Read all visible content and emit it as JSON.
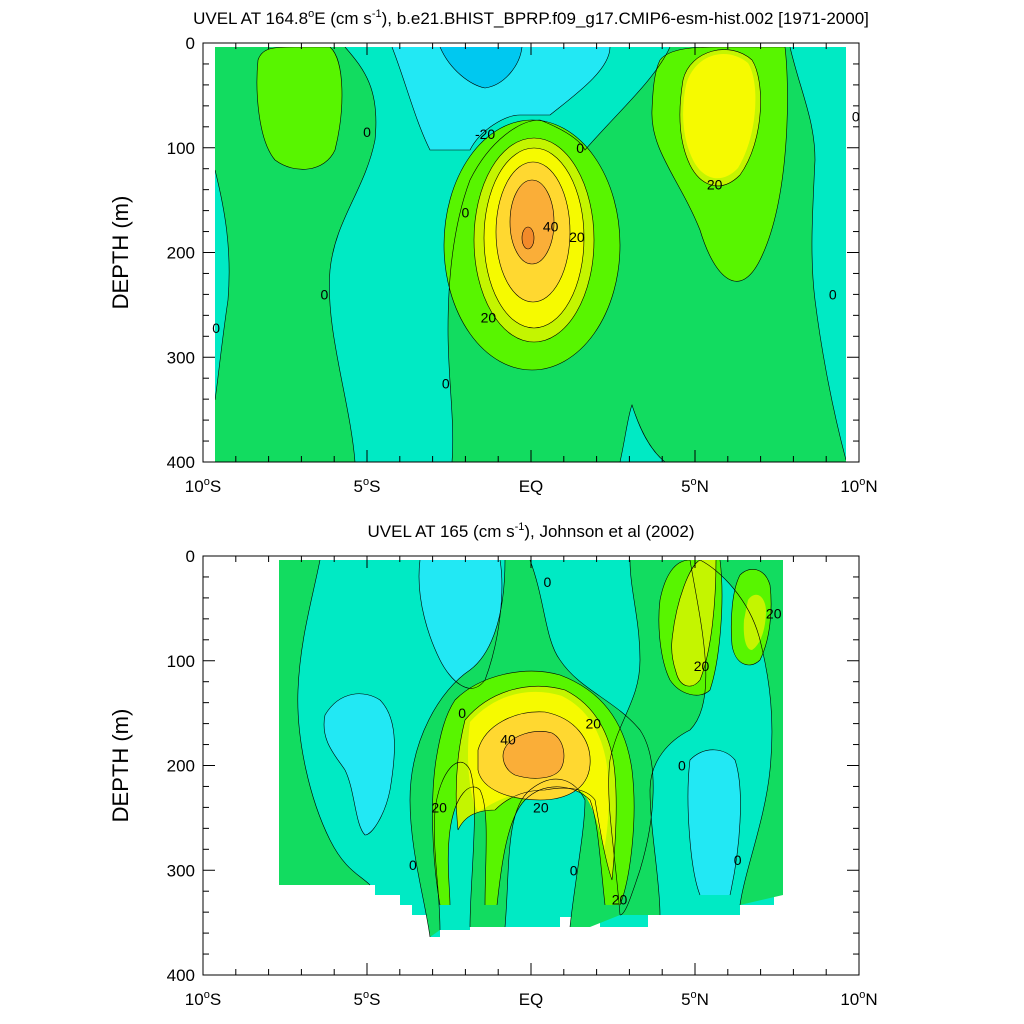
{
  "chart_data": [
    {
      "type": "contour",
      "title": "UVEL AT 164.8°E (cm s⁻¹), b.e21.BHIST_BPRP.f09_g17.CMIP6-esm-hist.002 [1971-2000]",
      "title_parts": {
        "pre": "UVEL AT 164.8",
        "deg": "o",
        "post1": "E (cm s",
        "sup": "-1",
        "post2": "), b.e21.BHIST_BPRP.f09_g17.CMIP6-esm-hist.002 [1971-2000]"
      },
      "ylabel": "DEPTH (m)",
      "xlim": [
        -10,
        10
      ],
      "ylim": [
        0,
        400
      ],
      "y_reversed": true,
      "x_ticks": [
        {
          "value": -10,
          "num": "10",
          "deg": "o",
          "hemi": "S"
        },
        {
          "value": -5,
          "num": "5",
          "deg": "o",
          "hemi": "S"
        },
        {
          "value": 0,
          "num": "EQ",
          "deg": "",
          "hemi": ""
        },
        {
          "value": 5,
          "num": "5",
          "deg": "o",
          "hemi": "N"
        },
        {
          "value": 10,
          "num": "10",
          "deg": "o",
          "hemi": "N"
        }
      ],
      "y_ticks": [
        0,
        100,
        200,
        300,
        400
      ],
      "contour_labels": [
        {
          "text": "0",
          "lat": -5,
          "depth": 85
        },
        {
          "text": "-20",
          "lat": -1.4,
          "depth": 87
        },
        {
          "text": "0",
          "lat": 1.5,
          "depth": 100
        },
        {
          "text": "0",
          "lat": 9.9,
          "depth": 70
        },
        {
          "text": "0",
          "lat": -2,
          "depth": 162
        },
        {
          "text": "40",
          "lat": 0.6,
          "depth": 175
        },
        {
          "text": "20",
          "lat": 1.4,
          "depth": 185
        },
        {
          "text": "20",
          "lat": 5.6,
          "depth": 135
        },
        {
          "text": "0",
          "lat": -6.3,
          "depth": 240
        },
        {
          "text": "0",
          "lat": 9.2,
          "depth": 240
        },
        {
          "text": "0",
          "lat": -9.6,
          "depth": 272
        },
        {
          "text": "20",
          "lat": -1.3,
          "depth": 262
        },
        {
          "text": "0",
          "lat": -2.6,
          "depth": 325
        }
      ]
    },
    {
      "type": "contour",
      "title": "UVEL AT 165 (cm s⁻¹), Johnson et al (2002)",
      "title_parts": {
        "pre": "UVEL AT 165 (cm s",
        "deg": "",
        "post1": "",
        "sup": "-1",
        "post2": "), Johnson et al (2002)"
      },
      "ylabel": "DEPTH (m)",
      "xlim": [
        -10,
        10
      ],
      "ylim": [
        0,
        400
      ],
      "y_reversed": true,
      "x_ticks": [
        {
          "value": -10,
          "num": "10",
          "deg": "o",
          "hemi": "S"
        },
        {
          "value": -5,
          "num": "5",
          "deg": "o",
          "hemi": "S"
        },
        {
          "value": 0,
          "num": "EQ",
          "deg": "",
          "hemi": ""
        },
        {
          "value": 5,
          "num": "5",
          "deg": "o",
          "hemi": "N"
        },
        {
          "value": 10,
          "num": "10",
          "deg": "o",
          "hemi": "N"
        }
      ],
      "y_ticks": [
        0,
        100,
        200,
        300,
        400
      ],
      "contour_labels": [
        {
          "text": "0",
          "lat": 0.5,
          "depth": 25
        },
        {
          "text": "20",
          "lat": 7.4,
          "depth": 55
        },
        {
          "text": "20",
          "lat": 5.2,
          "depth": 105
        },
        {
          "text": "0",
          "lat": -2.1,
          "depth": 150
        },
        {
          "text": "20",
          "lat": 1.9,
          "depth": 160
        },
        {
          "text": "40",
          "lat": -0.7,
          "depth": 175
        },
        {
          "text": "0",
          "lat": 4.6,
          "depth": 200
        },
        {
          "text": "20",
          "lat": -2.8,
          "depth": 240
        },
        {
          "text": "20",
          "lat": 0.3,
          "depth": 240
        },
        {
          "text": "0",
          "lat": -3.6,
          "depth": 295
        },
        {
          "text": "0",
          "lat": 1.3,
          "depth": 300
        },
        {
          "text": "0",
          "lat": 6.3,
          "depth": 290
        },
        {
          "text": "20",
          "lat": 2.7,
          "depth": 328
        }
      ]
    }
  ],
  "colors": {
    "level_neg30": "#00C8F0",
    "level_neg20": "#22E8F4",
    "level_neg10": "#00EAC4",
    "level_0": "#12DC60",
    "level_10": "#58F500",
    "level_20": "#C4F500",
    "level_30": "#F6FA00",
    "level_40": "#FFD830",
    "level_50": "#FAAE38"
  }
}
